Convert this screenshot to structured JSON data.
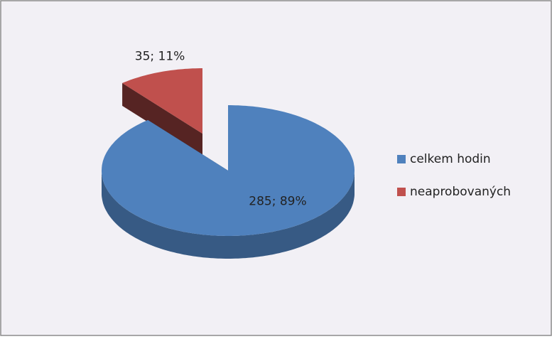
{
  "chart_data": {
    "type": "pie",
    "categories": [
      "celkem hodin",
      "neaprobovaných"
    ],
    "values": [
      285,
      35
    ],
    "value_labels": [
      "285; 89%",
      "35; 11%"
    ],
    "colors": [
      "#4f81bd",
      "#c0504d"
    ],
    "exploded": [
      false,
      true
    ],
    "legend": "right"
  }
}
